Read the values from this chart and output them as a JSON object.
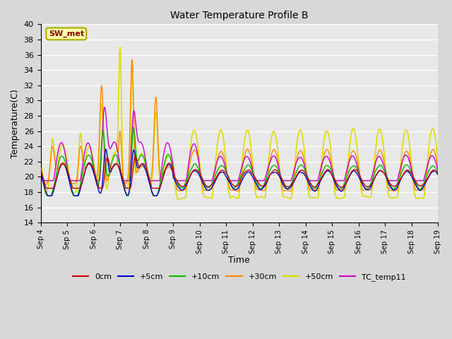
{
  "title": "Water Temperature Profile B",
  "xlabel": "Time",
  "ylabel": "Temperature(C)",
  "ylim": [
    14,
    40
  ],
  "yticks": [
    14,
    16,
    18,
    20,
    22,
    24,
    26,
    28,
    30,
    32,
    34,
    36,
    38,
    40
  ],
  "fig_bg": "#d8d8d8",
  "plot_bg": "#e8e8e8",
  "annotation_label": "SW_met",
  "annotation_bg": "#ffffaa",
  "annotation_border": "#aaaa00",
  "annotation_text_color": "#880000",
  "lines": {
    "0cm": {
      "color": "#cc0000",
      "lw": 1.0
    },
    "+5cm": {
      "color": "#0000cc",
      "lw": 1.0
    },
    "+10cm": {
      "color": "#00bb00",
      "lw": 1.0
    },
    "+30cm": {
      "color": "#ff8800",
      "lw": 1.0
    },
    "+50cm": {
      "color": "#dddd00",
      "lw": 1.2
    },
    "TC_temp11": {
      "color": "#cc00cc",
      "lw": 1.0
    }
  },
  "legend_order": [
    "0cm",
    "+5cm",
    "+10cm",
    "+30cm",
    "+50cm",
    "TC_temp11"
  ],
  "n_days": 15,
  "start_day": 4
}
